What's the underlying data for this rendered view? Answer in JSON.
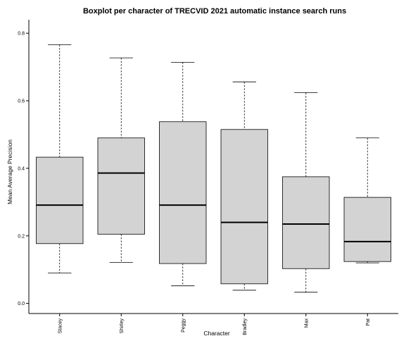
{
  "chart_data": {
    "type": "boxplot",
    "title": "Boxplot per character of TRECVID 2021 automatic instance search runs",
    "xlabel": "Character",
    "ylabel": "Mean Average Precision",
    "ylim": [
      -0.03,
      0.84
    ],
    "yticks": [
      0.0,
      0.2,
      0.4,
      0.6,
      0.8
    ],
    "ytick_labels": [
      "0.0",
      "0.2",
      "0.4",
      "0.6",
      "0.8"
    ],
    "categories": [
      "Stacey",
      "Shirley",
      "Peggy",
      "Bradley",
      "Max",
      "Pat"
    ],
    "boxes": [
      {
        "min": 0.09,
        "q1": 0.177,
        "median": 0.291,
        "q3": 0.433,
        "max": 0.766
      },
      {
        "min": 0.121,
        "q1": 0.205,
        "median": 0.386,
        "q3": 0.49,
        "max": 0.727
      },
      {
        "min": 0.052,
        "q1": 0.118,
        "median": 0.291,
        "q3": 0.538,
        "max": 0.714
      },
      {
        "min": 0.039,
        "q1": 0.058,
        "median": 0.24,
        "q3": 0.515,
        "max": 0.656
      },
      {
        "min": 0.033,
        "q1": 0.103,
        "median": 0.235,
        "q3": 0.375,
        "max": 0.624
      },
      {
        "min": 0.12,
        "q1": 0.124,
        "median": 0.183,
        "q3": 0.314,
        "max": 0.49
      }
    ],
    "grid": false,
    "box_fill": "#d3d3d3",
    "stroke_color": "#000000"
  }
}
